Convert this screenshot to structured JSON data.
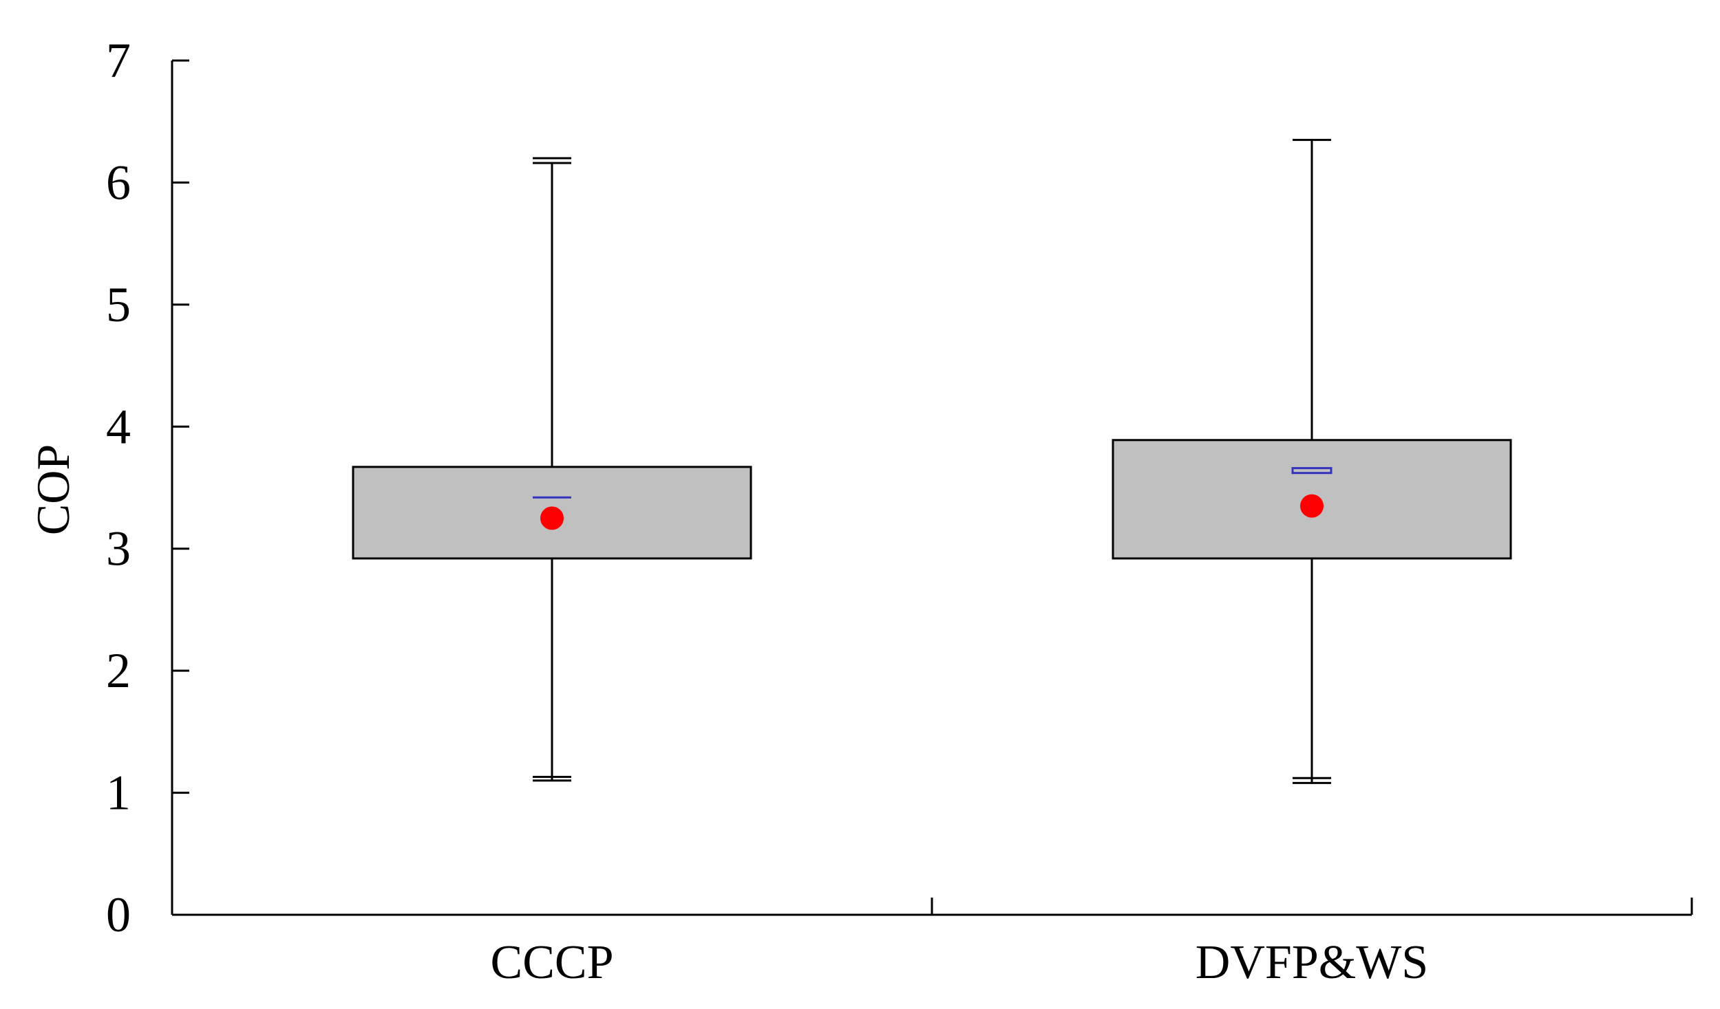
{
  "chart_data": {
    "type": "box",
    "ylabel": "COP",
    "xlabel": "",
    "ylim": [
      0,
      7
    ],
    "yticks": [
      "0",
      "1",
      "2",
      "3",
      "4",
      "5",
      "6",
      "7"
    ],
    "categories": [
      "CCCP",
      "DVFP&WS"
    ],
    "boxes": [
      {
        "category": "CCCP",
        "whisker_low": 1.1,
        "whisker_low_cap2": 1.13,
        "q1": 2.92,
        "median": 3.42,
        "q3": 3.67,
        "whisker_high": 6.16,
        "whisker_high_cap2": 6.2,
        "mean": 3.25
      },
      {
        "category": "DVFP&WS",
        "whisker_low": 1.08,
        "whisker_low_cap2": 1.12,
        "q1": 2.92,
        "median": 3.62,
        "median_top": 3.66,
        "q3": 3.89,
        "whisker_high": 6.35,
        "mean": 3.35
      }
    ],
    "grid": false,
    "legend": "none",
    "colors": {
      "box_fill": "#c0c0c0",
      "box_stroke": "#000000",
      "median": "#3333bb",
      "mean": "#ff0000",
      "axis": "#000000"
    }
  }
}
